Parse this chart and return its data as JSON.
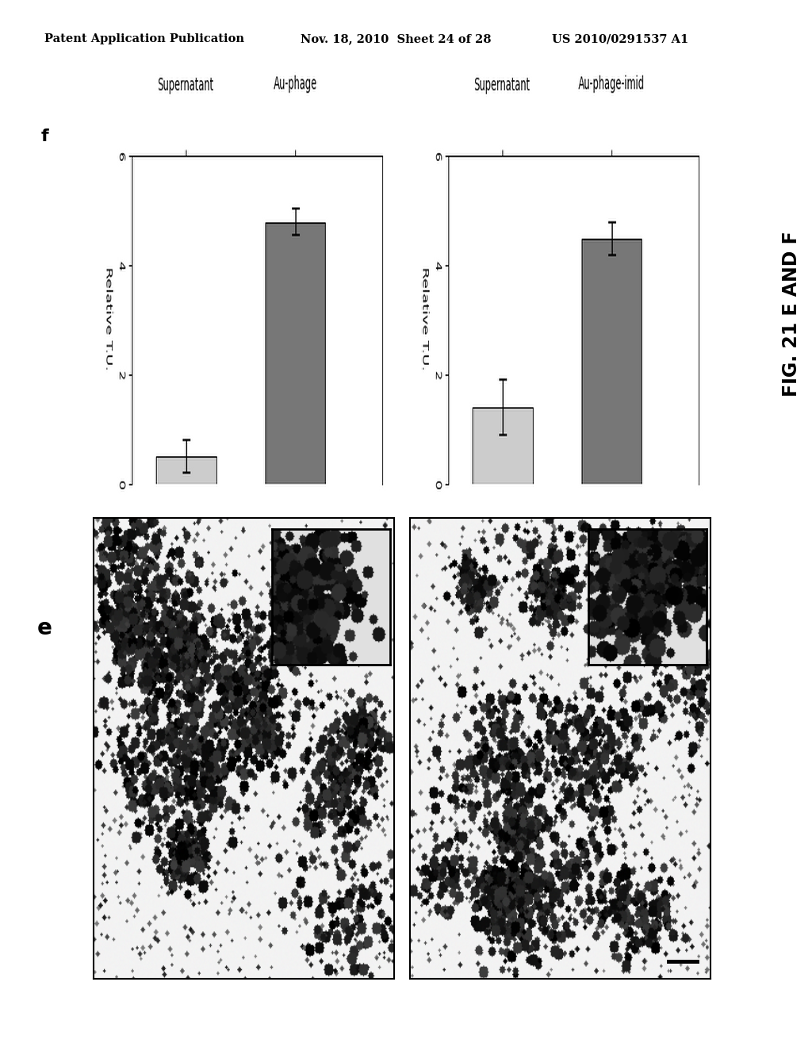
{
  "header_left": "Patent Application Publication",
  "header_mid": "Nov. 18, 2010  Sheet 24 of 28",
  "header_right": "US 2010/0291537 A1",
  "fig_label": "FIG. 21 E AND F",
  "panel_e_label": "e",
  "panel_f_label": "f",
  "chart1": {
    "bars": [
      {
        "label": "Au-phage",
        "value": 4.8,
        "color": "#777777",
        "error": 0.25
      },
      {
        "label": "Supernatant",
        "value": 0.5,
        "color": "#cccccc",
        "error": 0.3
      }
    ],
    "xlim": [
      0,
      6
    ],
    "xticks": [
      0,
      2,
      4,
      6
    ],
    "xlabel": "Relative T.U."
  },
  "chart2": {
    "bars": [
      {
        "label": "Au-phage-imid",
        "value": 4.5,
        "color": "#777777",
        "error": 0.3
      },
      {
        "label": "Supernatant",
        "value": 1.4,
        "color": "#cccccc",
        "error": 0.5
      }
    ],
    "xlim": [
      0,
      6
    ],
    "xticks": [
      0,
      2,
      4,
      6
    ],
    "xlabel": "Relative T.U."
  },
  "bg_color": "#ffffff",
  "text_color": "#000000"
}
